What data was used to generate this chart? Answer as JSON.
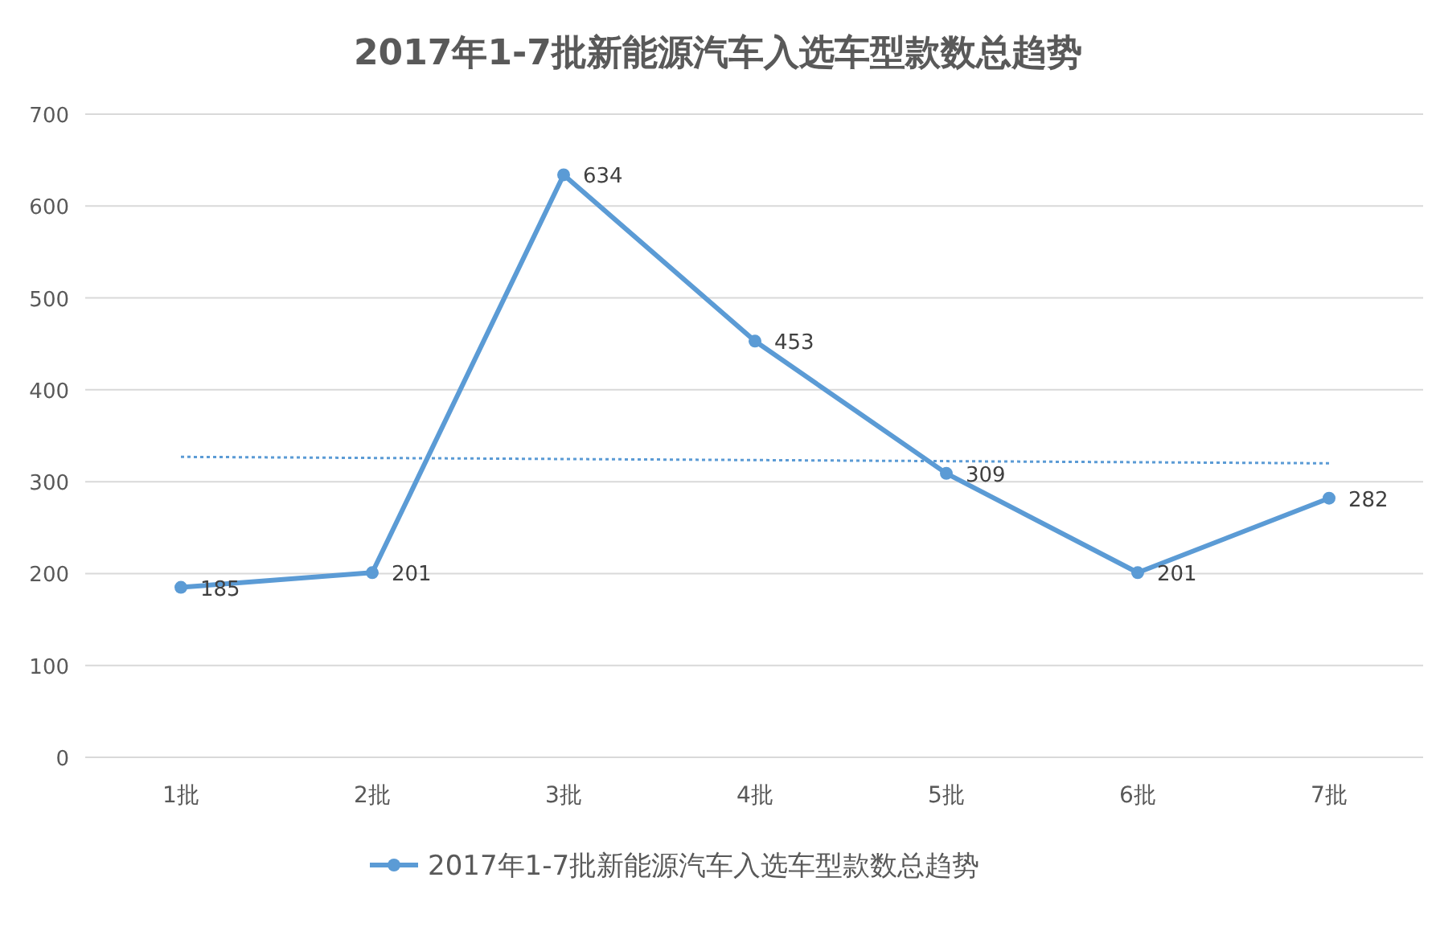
{
  "chart_data": {
    "type": "line",
    "title": "2017年1-7批新能源汽车入选车型款数总趋势",
    "categories": [
      "1批",
      "2批",
      "3批",
      "4批",
      "5批",
      "6批",
      "7批"
    ],
    "series": [
      {
        "name": "2017年1-7批新能源汽车入选车型款数总趋势",
        "color": "#5b9bd5",
        "values": [
          185,
          201,
          634,
          453,
          309,
          201,
          282
        ],
        "marker": "circle",
        "data_labels": true
      },
      {
        "type": "line",
        "x": [
          "1批",
          "7批"
        ],
        "values": [
          327,
          320
        ],
        "color": "#5b9bd5",
        "line_style": "dotted",
        "marker": "none"
      }
    ],
    "ylim": [
      0,
      700
    ],
    "yticks": [
      0,
      100,
      200,
      300,
      400,
      500,
      600,
      700
    ],
    "grid": "y",
    "legend": "bottom"
  }
}
